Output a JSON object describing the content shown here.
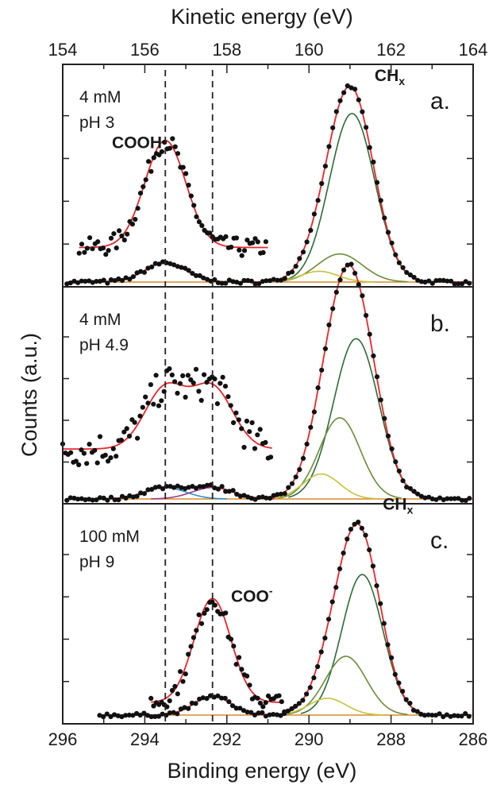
{
  "chart_data": {
    "type": "line",
    "top_axis": {
      "label": "Kinetic energy (eV)",
      "ticks": [
        "154",
        "156",
        "158",
        "160",
        "162",
        "164"
      ],
      "range": [
        154,
        164
      ]
    },
    "bottom_axis": {
      "label": "Binding energy (eV)",
      "ticks": [
        "296",
        "294",
        "292",
        "290",
        "288",
        "286"
      ],
      "range": [
        296,
        286
      ]
    },
    "y_axis": {
      "label": "Counts (a.u.)",
      "tick_labels": false
    },
    "reference_lines_binding_energy": [
      293.5,
      292.35
    ],
    "colors": {
      "data": "#111111",
      "fit_envelope": "#e8262a",
      "CHx_main": "#2e6b36",
      "CHx_shoulder1": "#6b8c3a",
      "CHx_shoulder2": "#c6c23a",
      "COOH": "#2f8fcf",
      "COO-": "#9a3b8c",
      "baseline": "#d98a2a"
    },
    "panels": [
      {
        "id": "a",
        "letter": "a.",
        "annotation": [
          "4 mM",
          "pH 3"
        ],
        "peak_labels": [
          {
            "text": "CH",
            "sub": "x",
            "be": 288.4,
            "y": 0.93
          },
          {
            "text": "COOH",
            "sub": "",
            "be": 294.8,
            "y": 0.62
          }
        ],
        "ch_components": [
          {
            "be": 288.95,
            "amp": 0.78,
            "w": 0.55
          },
          {
            "be": 289.25,
            "amp": 0.13,
            "w": 0.55
          },
          {
            "be": 289.75,
            "amp": 0.05,
            "w": 0.45
          }
        ],
        "carboxyl": [
          {
            "name": "COOH",
            "be": 293.5,
            "amp": 0.09,
            "w": 0.5
          }
        ],
        "zoom": {
          "be_min": 295.6,
          "be_max": 291.0,
          "offset": 0.16,
          "scale": 5.5
        }
      },
      {
        "id": "b",
        "letter": "b.",
        "annotation": [
          "4 mM",
          "pH 4.9"
        ],
        "peak_labels": [],
        "ch_components": [
          {
            "be": 288.85,
            "amp": 0.77,
            "w": 0.55
          },
          {
            "be": 289.25,
            "amp": 0.39,
            "w": 0.5
          },
          {
            "be": 289.7,
            "amp": 0.12,
            "w": 0.45
          }
        ],
        "carboxyl": [
          {
            "name": "COOH",
            "be": 293.5,
            "amp": 0.055,
            "w": 0.5
          },
          {
            "name": "COO-",
            "be": 292.35,
            "amp": 0.055,
            "w": 0.5
          }
        ],
        "zoom": {
          "be_min": 296.0,
          "be_max": 290.9,
          "offset": 0.24,
          "scale": 5.3
        }
      },
      {
        "id": "c",
        "letter": "c.",
        "annotation": [
          "100 mM",
          "pH 9"
        ],
        "peak_labels": [
          {
            "text": "CH",
            "sub": "x",
            "be": 288.2,
            "y": 0.98
          },
          {
            "text": "COO",
            "sub": "-",
            "be": 291.9,
            "y": 0.54
          }
        ],
        "ch_components": [
          {
            "be": 288.7,
            "amp": 0.67,
            "w": 0.5
          },
          {
            "be": 289.1,
            "amp": 0.28,
            "w": 0.5
          },
          {
            "be": 289.55,
            "amp": 0.08,
            "w": 0.45
          }
        ],
        "carboxyl": [
          {
            "name": "COO-",
            "be": 292.35,
            "amp": 0.09,
            "w": 0.45
          }
        ],
        "zoom": {
          "be_min": 293.85,
          "be_max": 290.6,
          "offset": 0.06,
          "scale": 5.5
        },
        "data_start_be": 295.1
      }
    ]
  }
}
